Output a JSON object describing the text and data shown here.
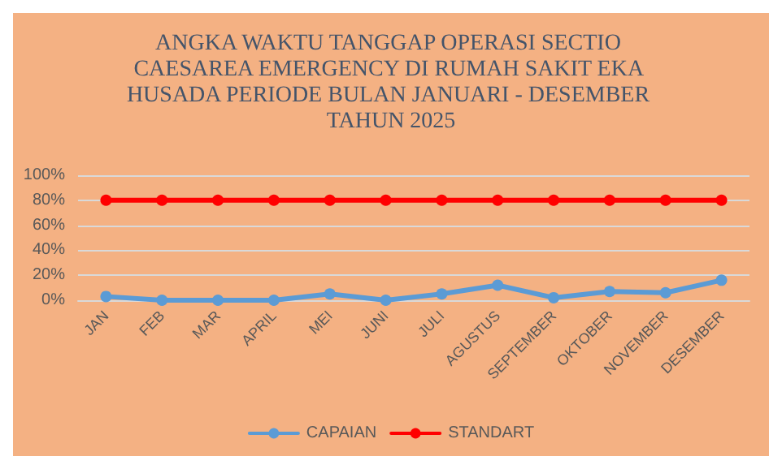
{
  "chart_data": {
    "type": "line",
    "title": "ANGKA WAKTU TANGGAP OPERASI SECTIO CAESAREA EMERGENCY DI RUMAH SAKIT EKA HUSADA PERIODE BULAN JANUARI - DESEMBER TAHUN 2025",
    "categories": [
      "JAN",
      "FEB",
      "MAR",
      "APRIL",
      "MEI",
      "JUNI",
      "JULI",
      "AGUSTUS",
      "SEPTEMBER",
      "OKTOBER",
      "NOVEMBER",
      "DESEMBER"
    ],
    "series": [
      {
        "name": "CAPAIAN",
        "color": "#5b9bd5",
        "values": [
          3,
          0,
          0,
          0,
          5,
          0,
          5,
          12,
          2,
          7,
          6,
          16
        ]
      },
      {
        "name": "STANDART",
        "color": "#ff0000",
        "values": [
          80,
          80,
          80,
          80,
          80,
          80,
          80,
          80,
          80,
          80,
          80,
          80
        ]
      }
    ],
    "ylim": [
      0,
      100
    ],
    "yticks": [
      {
        "value": 0,
        "label": "0%"
      },
      {
        "value": 20,
        "label": "20%"
      },
      {
        "value": 40,
        "label": "40%"
      },
      {
        "value": 60,
        "label": "60%"
      },
      {
        "value": 80,
        "label": "80%"
      },
      {
        "value": 100,
        "label": "100%"
      }
    ],
    "grid": "y",
    "legend": "bottom",
    "marker": "circle",
    "line_style": "solid"
  }
}
